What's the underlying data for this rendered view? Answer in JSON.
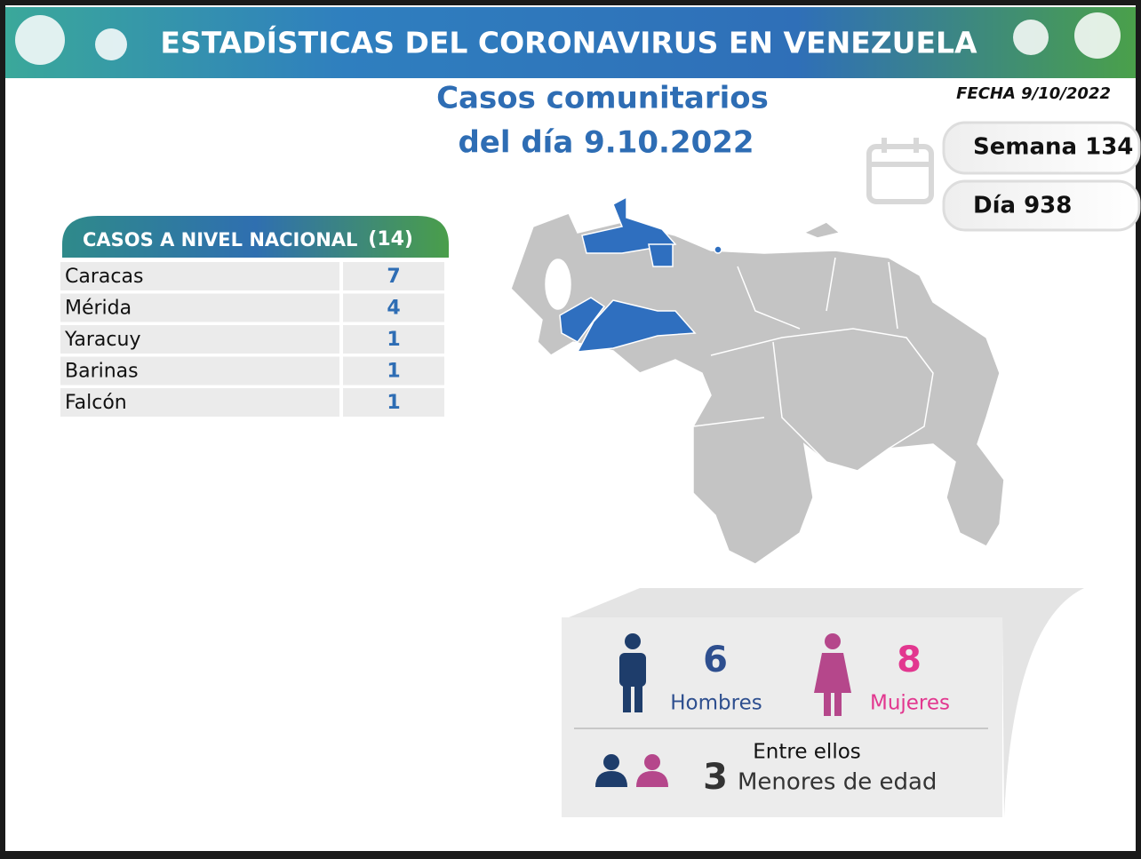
{
  "header": {
    "title": "ESTADÍSTICAS DEL CORONAVIRUS EN VENEZUELA"
  },
  "subtitle": {
    "line1": "Casos comunitarios",
    "line2": "del día 9.10.2022"
  },
  "date": "FECHA 9/10/2022",
  "week": "Semana 134",
  "day": "Día 938",
  "table": {
    "title": "CASOS A NIVEL NACIONAL",
    "total": "(14)",
    "rows": [
      [
        "Caracas",
        7
      ],
      [
        "Mérida",
        4
      ],
      [
        "Yaracuy",
        1
      ],
      [
        "Barinas",
        1
      ],
      [
        "Falcón",
        1
      ]
    ]
  },
  "stats": {
    "men": {
      "value": 6,
      "label": "Hombres"
    },
    "women": {
      "value": 8,
      "label": "Mujeres"
    },
    "minors": {
      "intro": "Entre ellos",
      "value": 3,
      "label": "Menores de edad"
    }
  }
}
